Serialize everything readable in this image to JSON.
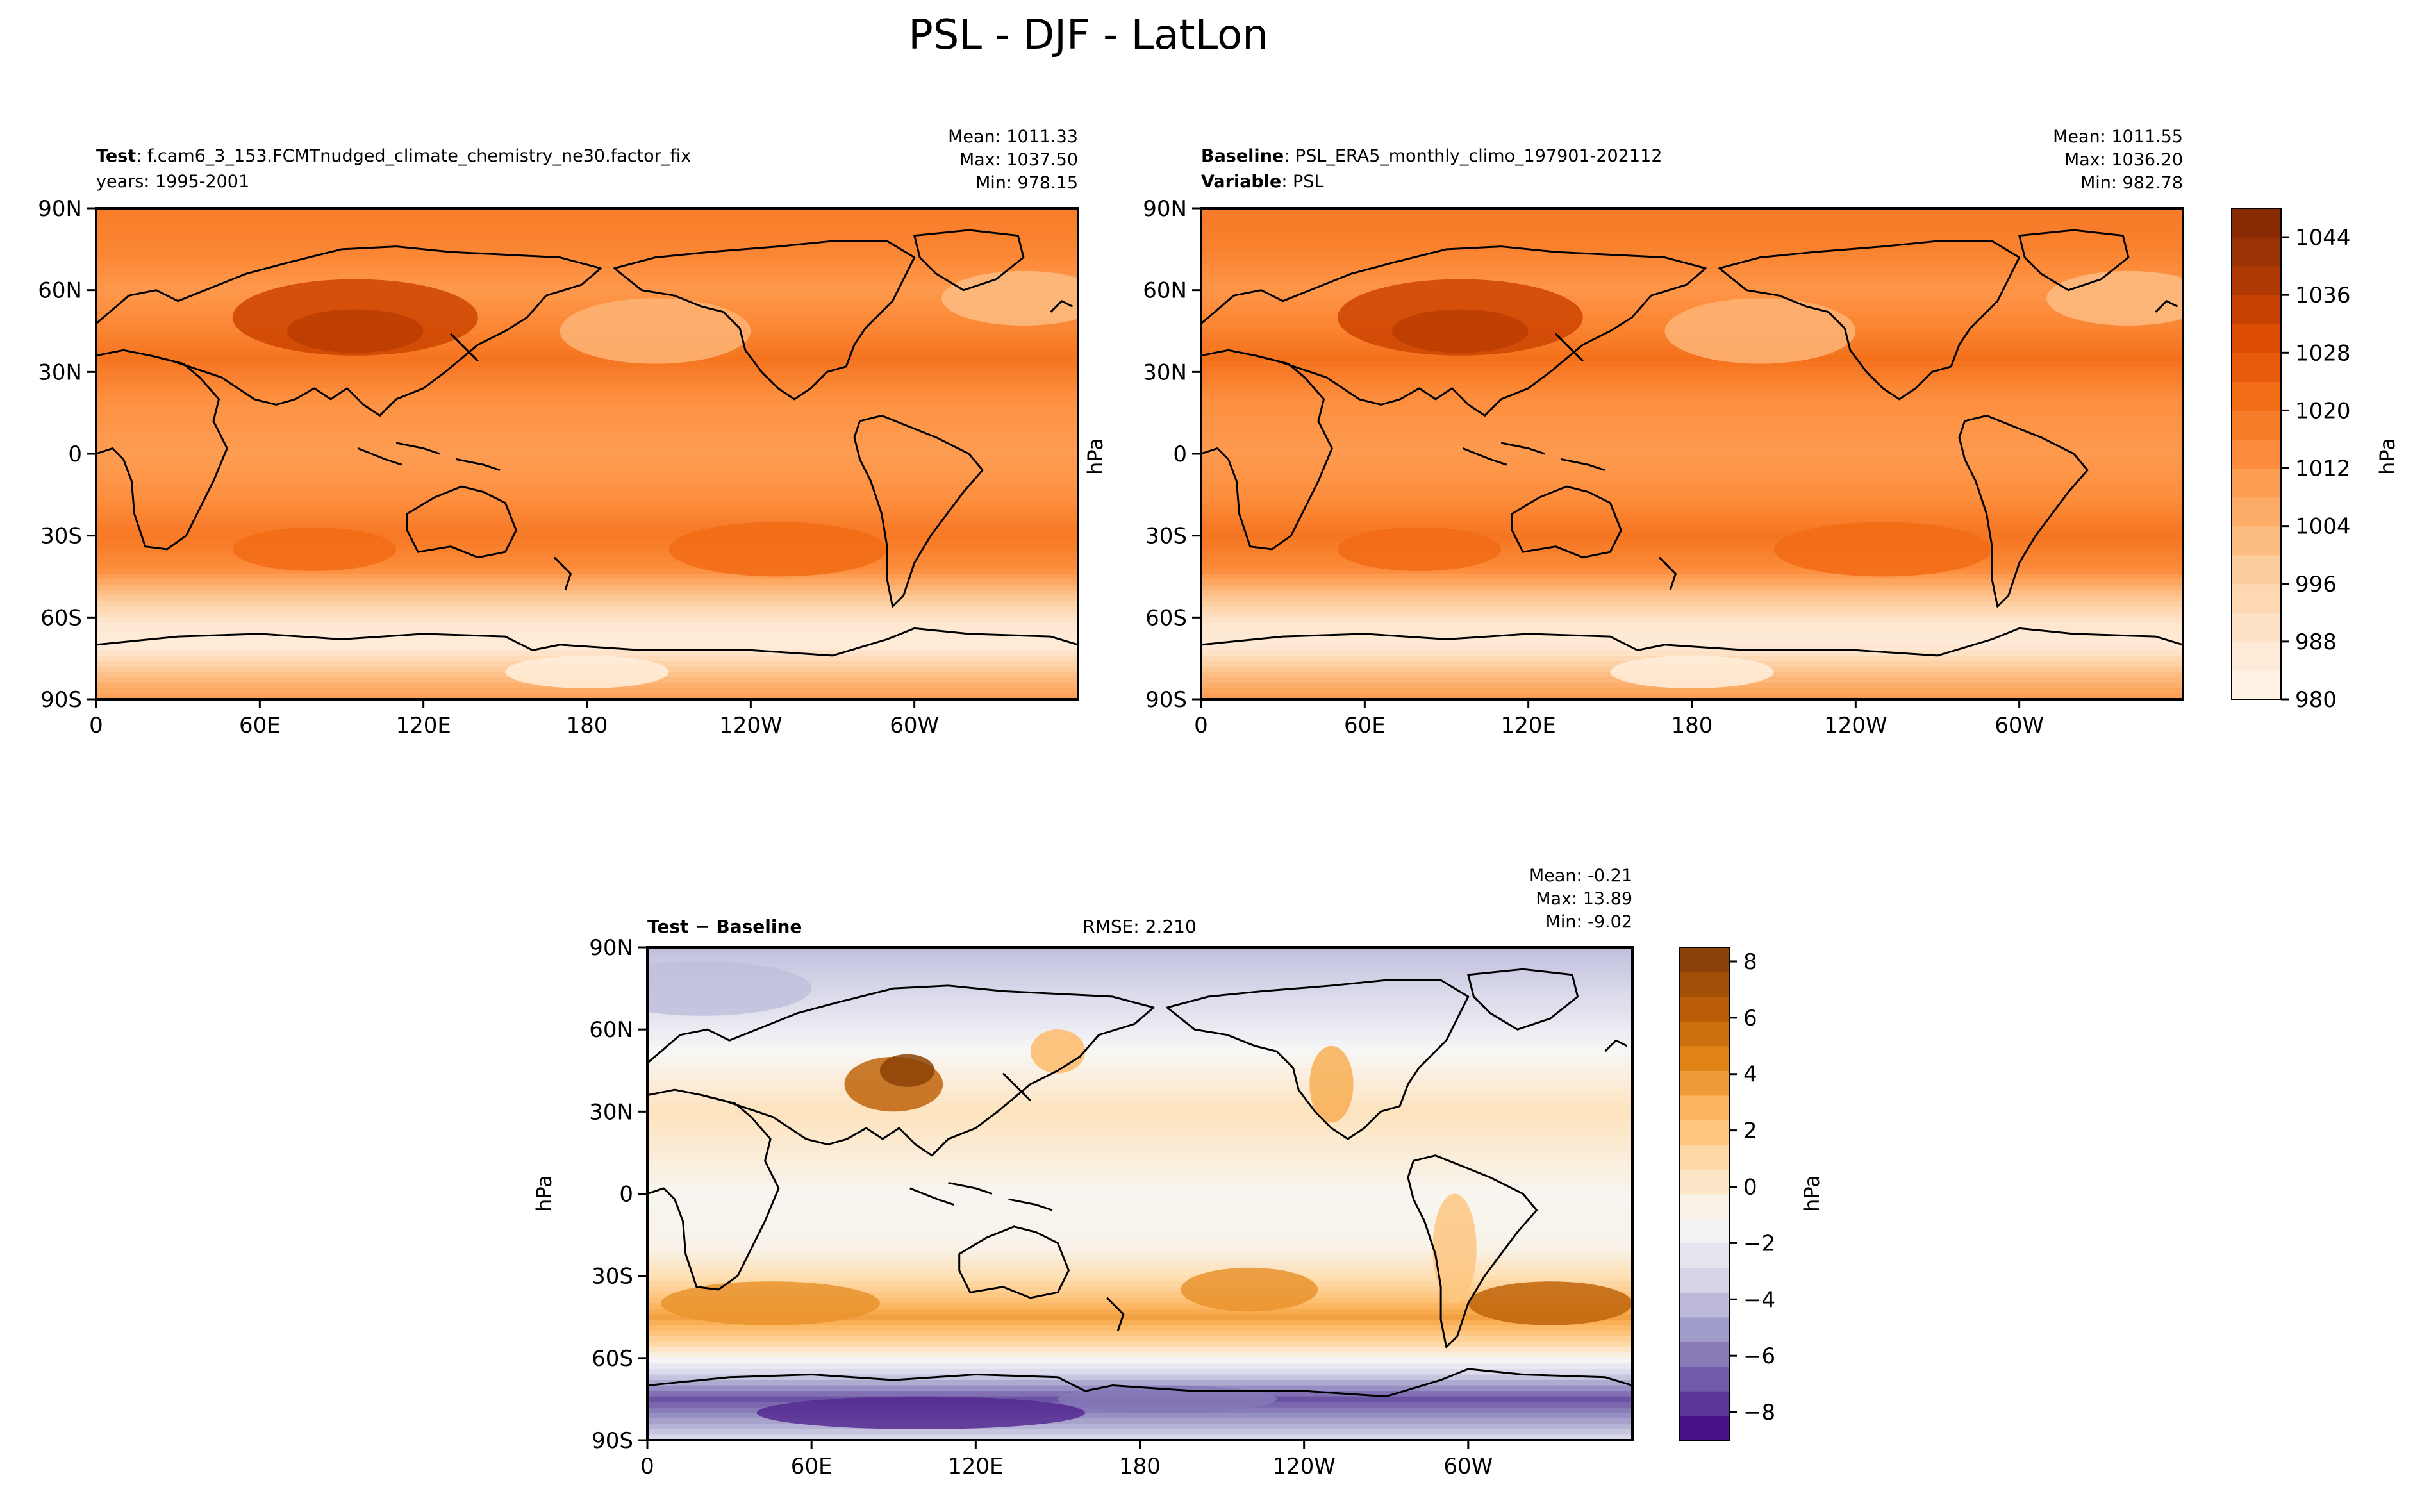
{
  "figure_title": "PSL - DJF - LatLon",
  "colors": {
    "orange_ramp": [
      "#fff5eb",
      "#fee6ce",
      "#fdd0a2",
      "#fdae6b",
      "#fd8d3c",
      "#f16913",
      "#d94801",
      "#a63603",
      "#7f2704"
    ],
    "diff_ramp": [
      "#3f007d",
      "#6a51a3",
      "#9e9ac8",
      "#dadaeb",
      "#f7f7f7",
      "#fee0b6",
      "#fdb863",
      "#e08214",
      "#b35806",
      "#7f3b08"
    ],
    "coast": "#000000",
    "axis": "#000000"
  },
  "chart_data": [
    {
      "type": "heatmap",
      "panel": "test",
      "label_bold": "Test",
      "label_value": "f.cam6_3_153.FCMTnudged_climate_chemistry_ne30.factor_fix",
      "label_line2": "years: 1995-2001",
      "stats": {
        "mean": "Mean: 1011.33",
        "max": "Max: 1037.50",
        "min": "Min: 978.15"
      },
      "field": "psl_test",
      "x_ticks": [
        "0",
        "60E",
        "120E",
        "180",
        "120W",
        "60W"
      ],
      "y_ticks": [
        "90N",
        "60N",
        "30N",
        "0",
        "30S",
        "60S",
        "90S"
      ],
      "xlim": [
        0,
        360
      ],
      "ylim": [
        -90,
        90
      ]
    },
    {
      "type": "heatmap",
      "panel": "baseline",
      "label_bold": "Baseline",
      "label_value": "PSL_ERA5_monthly_climo_197901-202112",
      "label2_bold": "Variable",
      "label2_value": "PSL",
      "stats": {
        "mean": "Mean: 1011.55",
        "max": "Max: 1036.20",
        "min": "Min: 982.78"
      },
      "field": "psl_base",
      "x_ticks": [
        "0",
        "60E",
        "120E",
        "180",
        "120W",
        "60W"
      ],
      "y_ticks": [
        "90N",
        "60N",
        "30N",
        "0",
        "30S",
        "60S",
        "90S"
      ],
      "xlim": [
        0,
        360
      ],
      "ylim": [
        -90,
        90
      ],
      "ylabel": "hPa"
    },
    {
      "type": "heatmap",
      "panel": "diff",
      "label_bold": "Test − Baseline",
      "center_label": "RMSE: 2.210",
      "stats": {
        "mean": "Mean: -0.21",
        "max": "Max: 13.89",
        "min": "Min: -9.02"
      },
      "field": "psl_diff",
      "x_ticks": [
        "0",
        "60E",
        "120E",
        "180",
        "120W",
        "60W"
      ],
      "y_ticks": [
        "90N",
        "60N",
        "30N",
        "0",
        "30S",
        "60S",
        "90S"
      ],
      "xlim": [
        0,
        360
      ],
      "ylim": [
        -90,
        90
      ],
      "ylabel": "hPa"
    }
  ],
  "colorbars": [
    {
      "name": "psl-colorbar",
      "vmin": 980,
      "vmax": 1048,
      "ticks": [
        "1044",
        "1036",
        "1028",
        "1020",
        "1012",
        "1004",
        "996",
        "988",
        "980"
      ],
      "tick_values": [
        1044,
        1036,
        1028,
        1020,
        1012,
        1004,
        996,
        988,
        980
      ],
      "label": "hPa",
      "levels": 17
    },
    {
      "name": "diff-colorbar",
      "vmin": -9,
      "vmax": 8.5,
      "ticks": [
        "8",
        "6",
        "4",
        "2",
        "0",
        "−2",
        "−4",
        "−6",
        "−8"
      ],
      "tick_values": [
        8,
        6,
        4,
        2,
        0,
        -2,
        -4,
        -6,
        -8
      ],
      "label": "hPa",
      "levels": 20
    }
  ]
}
